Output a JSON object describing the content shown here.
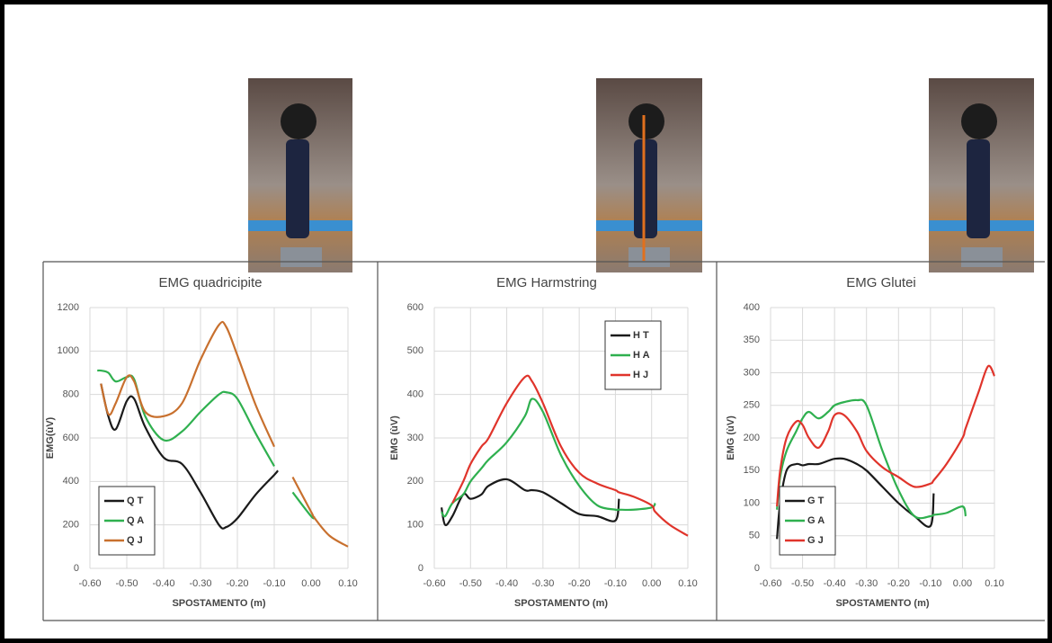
{
  "chart_data": [
    {
      "type": "line",
      "title": "EMG quadricipite",
      "x_label": "SPOSTAMENTO (m)",
      "y_label": "EMG(ùV)",
      "x": [
        -0.58,
        -0.57,
        -0.55,
        -0.53,
        -0.5,
        -0.48,
        -0.45,
        -0.4,
        -0.35,
        -0.3,
        -0.25,
        -0.23,
        -0.2,
        -0.15,
        -0.1,
        -0.09,
        -0.05,
        0.0,
        0.01,
        0.05,
        0.1
      ],
      "series": [
        {
          "name": "Q T",
          "color": "#1a1a1a",
          "values": [
            null,
            850,
            700,
            640,
            770,
            780,
            650,
            510,
            480,
            350,
            200,
            190,
            230,
            340,
            430,
            450,
            null,
            null,
            null,
            null,
            null
          ]
        },
        {
          "name": "Q A",
          "color": "#2fb04f",
          "values": [
            910,
            910,
            900,
            860,
            880,
            870,
            700,
            590,
            630,
            720,
            800,
            810,
            780,
            620,
            470,
            null,
            350,
            240,
            235,
            null,
            null
          ]
        },
        {
          "name": "Q J",
          "color": "#c8702e",
          "values": [
            null,
            850,
            710,
            760,
            880,
            860,
            720,
            700,
            760,
            960,
            1120,
            1110,
            980,
            750,
            560,
            null,
            420,
            260,
            230,
            150,
            100
          ]
        }
      ],
      "xlim": [
        -0.6,
        0.1
      ],
      "ylim": [
        0,
        1200
      ],
      "xticks": [
        {
          "value": -0.6,
          "label": "-0.60"
        },
        {
          "value": -0.5,
          "label": "-0.50"
        },
        {
          "value": -0.4,
          "label": "-0.40"
        },
        {
          "value": -0.3,
          "label": "-0.30"
        },
        {
          "value": -0.2,
          "label": "-0.20"
        },
        {
          "value": -0.1,
          "label": "-0.10"
        },
        {
          "value": 0,
          "label": "0.00"
        },
        {
          "value": 0.1,
          "label": "0.10"
        }
      ],
      "yticks": [
        0,
        200,
        400,
        600,
        800,
        1000,
        1200
      ],
      "grid": true,
      "legend": "lower left"
    },
    {
      "type": "line",
      "title": "EMG Harmstring",
      "x_label": "SPOSTAMENTO (m)",
      "y_label": "EMG (ùV)",
      "x": [
        -0.58,
        -0.57,
        -0.55,
        -0.52,
        -0.5,
        -0.47,
        -0.45,
        -0.4,
        -0.35,
        -0.33,
        -0.3,
        -0.25,
        -0.2,
        -0.15,
        -0.1,
        -0.09,
        -0.05,
        0.0,
        0.01,
        0.05,
        0.1
      ],
      "series": [
        {
          "name": "H T",
          "color": "#1a1a1a",
          "values": [
            140,
            100,
            120,
            170,
            160,
            170,
            190,
            205,
            180,
            180,
            175,
            150,
            125,
            120,
            110,
            160,
            null,
            null,
            null,
            null,
            null
          ]
        },
        {
          "name": "H A",
          "color": "#2fb04f",
          "values": [
            130,
            120,
            150,
            170,
            200,
            230,
            250,
            290,
            350,
            390,
            360,
            260,
            190,
            145,
            135,
            135,
            135,
            140,
            150,
            null,
            null
          ]
        },
        {
          "name": "H J",
          "color": "#e0342b",
          "values": [
            null,
            null,
            150,
            200,
            240,
            280,
            300,
            380,
            440,
            430,
            380,
            280,
            220,
            195,
            180,
            175,
            165,
            145,
            130,
            100,
            75
          ]
        }
      ],
      "xlim": [
        -0.6,
        0.1
      ],
      "ylim": [
        0,
        600
      ],
      "xticks": [
        {
          "value": -0.6,
          "label": "-0.60"
        },
        {
          "value": -0.5,
          "label": "-0.50"
        },
        {
          "value": -0.4,
          "label": "-0.40"
        },
        {
          "value": -0.3,
          "label": "-0.30"
        },
        {
          "value": -0.2,
          "label": "-0.20"
        },
        {
          "value": -0.1,
          "label": "-0.10"
        },
        {
          "value": 0,
          "label": "0.00"
        },
        {
          "value": 0.1,
          "label": "0.10"
        }
      ],
      "yticks": [
        0,
        100,
        200,
        300,
        400,
        500,
        600
      ],
      "grid": true,
      "legend": "upper right"
    },
    {
      "type": "line",
      "title": "EMG Glutei",
      "x_label": "SPOSTAMENTO (m)",
      "y_label": "EMG (ùV)",
      "x": [
        -0.58,
        -0.57,
        -0.55,
        -0.52,
        -0.5,
        -0.48,
        -0.45,
        -0.42,
        -0.4,
        -0.37,
        -0.33,
        -0.3,
        -0.25,
        -0.2,
        -0.15,
        -0.1,
        -0.09,
        -0.05,
        0.0,
        0.01,
        0.05,
        0.08,
        0.1
      ],
      "series": [
        {
          "name": "G T",
          "color": "#1a1a1a",
          "values": [
            45,
            100,
            150,
            160,
            158,
            160,
            160,
            165,
            168,
            168,
            160,
            150,
            125,
            100,
            80,
            65,
            115,
            null,
            null,
            null,
            null,
            null,
            null
          ]
        },
        {
          "name": "G A",
          "color": "#2fb04f",
          "values": [
            90,
            140,
            180,
            210,
            230,
            240,
            230,
            240,
            250,
            255,
            258,
            250,
            180,
            120,
            80,
            80,
            82,
            85,
            95,
            80,
            null,
            null,
            null
          ]
        },
        {
          "name": "G J",
          "color": "#e0342b",
          "values": [
            95,
            150,
            200,
            225,
            220,
            200,
            185,
            210,
            235,
            235,
            210,
            180,
            155,
            140,
            125,
            130,
            135,
            160,
            200,
            215,
            270,
            310,
            295
          ]
        }
      ],
      "xlim": [
        -0.6,
        0.1
      ],
      "ylim": [
        0,
        400
      ],
      "xticks": [
        {
          "value": -0.6,
          "label": "-0.60"
        },
        {
          "value": -0.5,
          "label": "-0.50"
        },
        {
          "value": -0.4,
          "label": "-0.40"
        },
        {
          "value": -0.3,
          "label": "-0.30"
        },
        {
          "value": -0.2,
          "label": "-0.20"
        },
        {
          "value": -0.1,
          "label": "-0.10"
        },
        {
          "value": 0,
          "label": "0.00"
        },
        {
          "value": 0.1,
          "label": "0.10"
        }
      ],
      "yticks": [
        0,
        50,
        100,
        150,
        200,
        250,
        300,
        350,
        400
      ],
      "grid": true,
      "legend": "lower left"
    }
  ]
}
